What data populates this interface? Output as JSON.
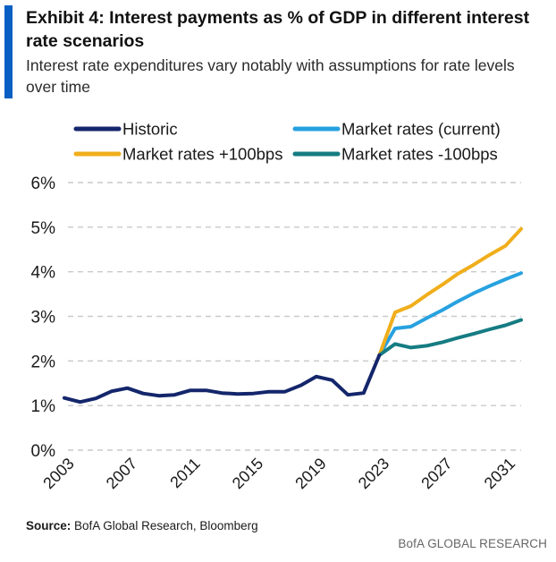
{
  "header": {
    "title": "Exhibit 4: Interest payments as % of GDP in different interest rate scenarios",
    "subtitle": "Interest rate expenditures vary notably with assumptions for rate levels over time"
  },
  "footer": {
    "source_label": "Source:",
    "source_text": " BofA Global Research, Bloomberg",
    "brand": "BofA GLOBAL RESEARCH"
  },
  "colors": {
    "accent": "#0a5fc4"
  },
  "chart_data": {
    "type": "line",
    "title": "Exhibit 4: Interest payments as % of GDP in different interest rate scenarios",
    "subtitle": "Interest rate expenditures vary notably with assumptions for rate levels over time",
    "xlabel": "",
    "ylabel": "",
    "xlim": [
      2003,
      2032
    ],
    "ylim": [
      0,
      6
    ],
    "x_ticks": [
      "2003",
      "2007",
      "2011",
      "2015",
      "2019",
      "2023",
      "2027",
      "2031"
    ],
    "y_ticks": [
      "0%",
      "1%",
      "2%",
      "3%",
      "4%",
      "5%",
      "6%"
    ],
    "grid": "horizontal dashed",
    "legend_position": "top",
    "series": [
      {
        "name": "Historic",
        "color": "#14266b",
        "x": [
          2003,
          2004,
          2005,
          2006,
          2007,
          2008,
          2009,
          2010,
          2011,
          2012,
          2013,
          2014,
          2015,
          2016,
          2017,
          2018,
          2019,
          2020,
          2021,
          2022,
          2023
        ],
        "y": [
          1.17,
          1.08,
          1.16,
          1.32,
          1.39,
          1.27,
          1.22,
          1.24,
          1.34,
          1.34,
          1.28,
          1.26,
          1.27,
          1.31,
          1.31,
          1.45,
          1.65,
          1.57,
          1.24,
          1.28,
          2.13
        ]
      },
      {
        "name": "Market rates (current)",
        "color": "#27a1e0",
        "x": [
          2023,
          2024,
          2025,
          2026,
          2027,
          2028,
          2029,
          2030,
          2031,
          2032
        ],
        "y": [
          2.13,
          2.73,
          2.77,
          2.96,
          3.14,
          3.34,
          3.52,
          3.68,
          3.83,
          3.97
        ]
      },
      {
        "name": "Market rates +100bps",
        "color": "#f0ae1b",
        "x": [
          2023,
          2024,
          2025,
          2026,
          2027,
          2028,
          2029,
          2030,
          2031,
          2032
        ],
        "y": [
          2.13,
          3.09,
          3.23,
          3.48,
          3.71,
          3.96,
          4.16,
          4.38,
          4.58,
          4.96
        ]
      },
      {
        "name": "Market rates -100bps",
        "color": "#157c82",
        "x": [
          2023,
          2024,
          2025,
          2026,
          2027,
          2028,
          2029,
          2030,
          2031,
          2032
        ],
        "y": [
          2.13,
          2.38,
          2.3,
          2.34,
          2.42,
          2.52,
          2.61,
          2.71,
          2.8,
          2.92
        ]
      }
    ]
  }
}
